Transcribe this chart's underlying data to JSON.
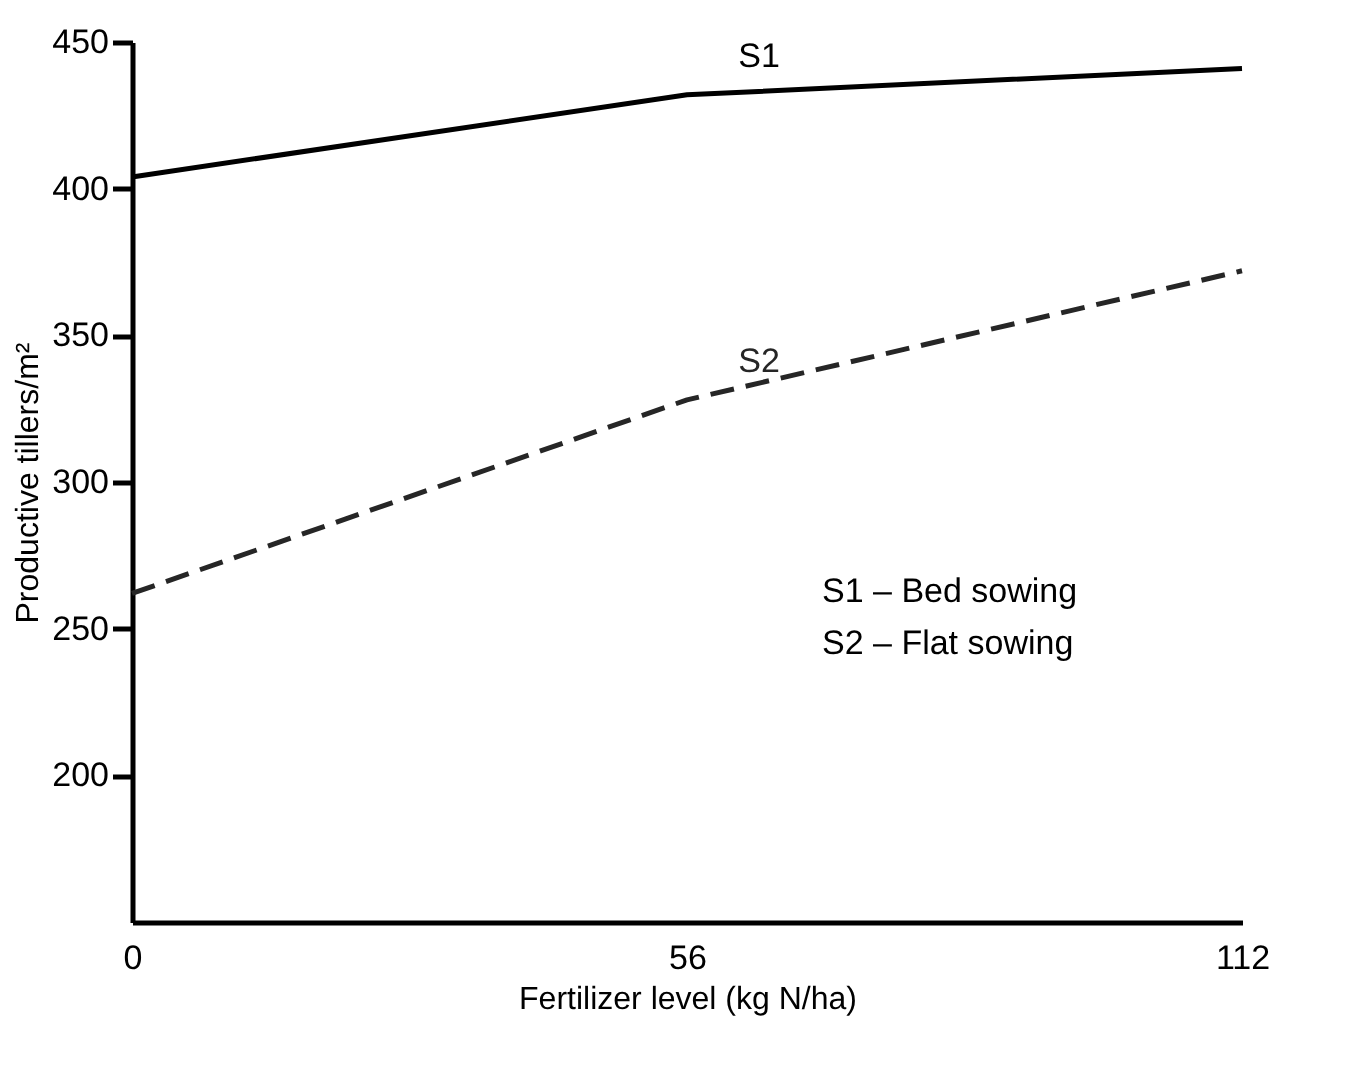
{
  "chart_data": {
    "type": "line",
    "xlabel": "Fertilizer level (kg N/ha)",
    "ylabel": "Productive tillers/m²",
    "x": [
      0,
      56,
      112
    ],
    "xlim": [
      0,
      112
    ],
    "xticks": [
      0,
      56,
      112
    ],
    "ylim": [
      150,
      450
    ],
    "yticks": [
      200,
      250,
      300,
      350,
      400,
      450
    ],
    "grid": false,
    "marker": "none",
    "series": [
      {
        "name": "S1",
        "color": "#000000",
        "line_style": "solid",
        "values": [
          404,
          432,
          441
        ]
      },
      {
        "name": "S2",
        "color": "#262626",
        "line_style": "dashed",
        "values": [
          262,
          328,
          372
        ]
      }
    ],
    "annotations": [
      "S1 – Bed sowing",
      "S2 – Flat sowing"
    ]
  }
}
